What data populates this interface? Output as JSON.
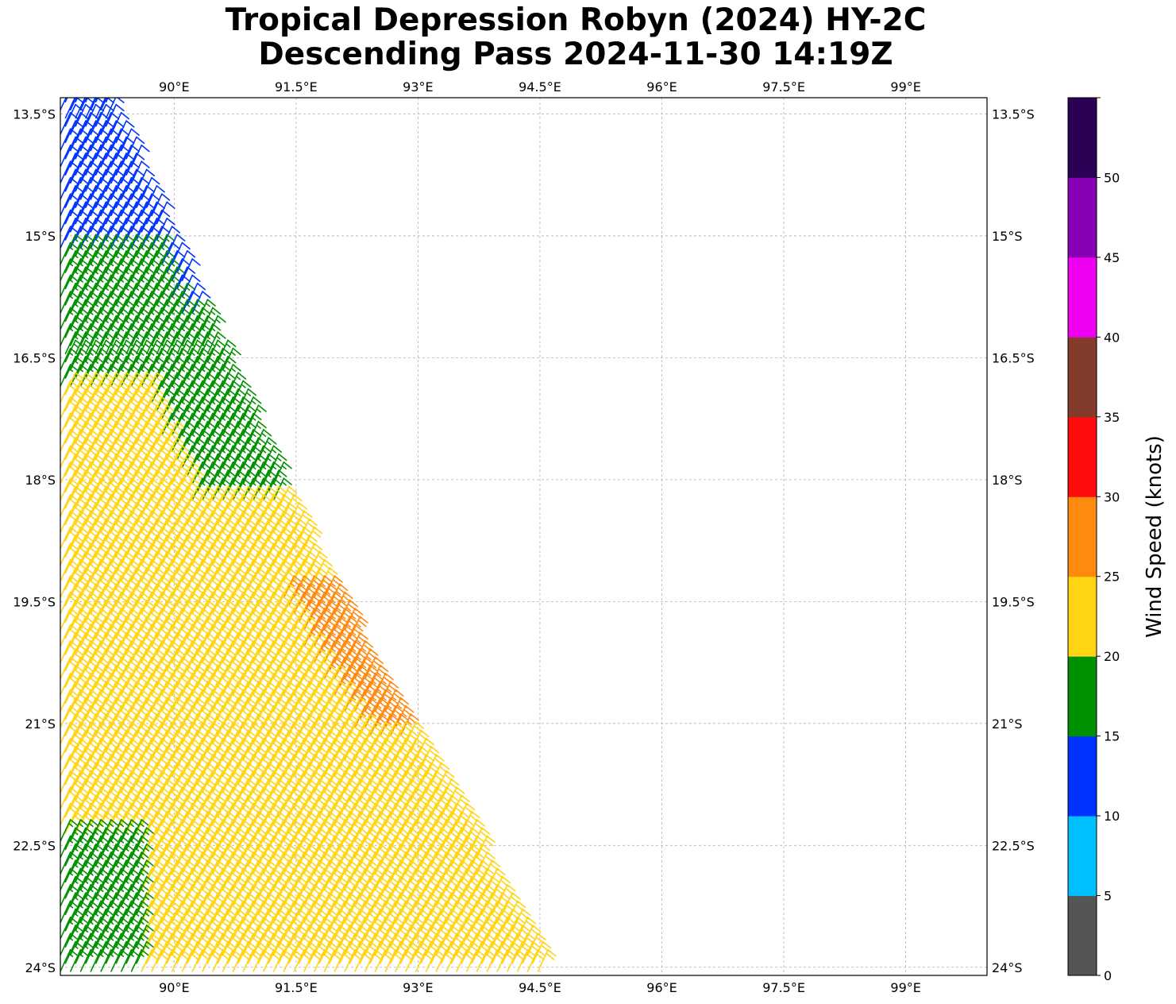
{
  "title": {
    "line1": "Tropical Depression Robyn (2024) HY-2C",
    "line2": "Descending Pass 2024-11-30 14:19Z"
  },
  "map": {
    "lon_range": [
      88.6,
      100.0
    ],
    "lat_range": [
      -24.1,
      -13.3
    ],
    "lon_ticks": [
      {
        "value": 90.0,
        "label": "90°E"
      },
      {
        "value": 91.5,
        "label": "91.5°E"
      },
      {
        "value": 93.0,
        "label": "93°E"
      },
      {
        "value": 94.5,
        "label": "94.5°E"
      },
      {
        "value": 96.0,
        "label": "96°E"
      },
      {
        "value": 97.5,
        "label": "97.5°E"
      },
      {
        "value": 99.0,
        "label": "99°E"
      }
    ],
    "lat_ticks": [
      {
        "value": -13.5,
        "label": "13.5°S"
      },
      {
        "value": -15.0,
        "label": "15°S"
      },
      {
        "value": -16.5,
        "label": "16.5°S"
      },
      {
        "value": -18.0,
        "label": "18°S"
      },
      {
        "value": -19.5,
        "label": "19.5°S"
      },
      {
        "value": -21.0,
        "label": "21°S"
      },
      {
        "value": -22.5,
        "label": "22.5°S"
      },
      {
        "value": -24.0,
        "label": "24°S"
      }
    ],
    "grid": true,
    "barb_direction_deg": 155,
    "swath": {
      "west_edge_lon": 88.6,
      "east_edge": [
        [
          -13.5,
          89.2
        ],
        [
          -15.3,
          90.0
        ],
        [
          -18.2,
          91.3
        ],
        [
          -19.5,
          91.9
        ],
        [
          -21.2,
          92.9
        ],
        [
          -24.0,
          94.5
        ]
      ]
    },
    "speed_regions": [
      {
        "lat_range": [
          -13.3,
          -15.2
        ],
        "kt": 12
      },
      {
        "lat_range": [
          -15.2,
          -16.0
        ],
        "kt": 12,
        "note": "western columns blue"
      },
      {
        "lat_range": [
          -14.8,
          -18.3
        ],
        "kt": 17
      },
      {
        "lat_range": [
          -16.9,
          -21.2
        ],
        "kt": 22
      },
      {
        "lat_range": [
          -19.4,
          -21.2
        ],
        "kt": 27,
        "east_columns": 5
      },
      {
        "lat_range": [
          -21.2,
          -23.0
        ],
        "kt": 22
      },
      {
        "lat_range": [
          -22.4,
          -24.1
        ],
        "kt": 17,
        "west_columns": 8
      }
    ]
  },
  "colorbar": {
    "label": "Wind Speed (knots)",
    "bins": [
      {
        "lo": 0,
        "hi": 5,
        "color": "#555555"
      },
      {
        "lo": 5,
        "hi": 10,
        "color": "#00bfff"
      },
      {
        "lo": 10,
        "hi": 15,
        "color": "#0033ff"
      },
      {
        "lo": 15,
        "hi": 20,
        "color": "#009100"
      },
      {
        "lo": 20,
        "hi": 25,
        "color": "#ffd514"
      },
      {
        "lo": 25,
        "hi": 30,
        "color": "#ff8a0f"
      },
      {
        "lo": 30,
        "hi": 35,
        "color": "#ff0d0d"
      },
      {
        "lo": 35,
        "hi": 40,
        "color": "#833b2b"
      },
      {
        "lo": 40,
        "hi": 45,
        "color": "#f000f0"
      },
      {
        "lo": 45,
        "hi": 50,
        "color": "#8700b4"
      },
      {
        "lo": 50,
        "hi": 55,
        "color": "#2c0055"
      }
    ],
    "tick_labels": [
      "0",
      "5",
      "10",
      "15",
      "20",
      "25",
      "30",
      "35",
      "40",
      "45",
      "50"
    ]
  }
}
